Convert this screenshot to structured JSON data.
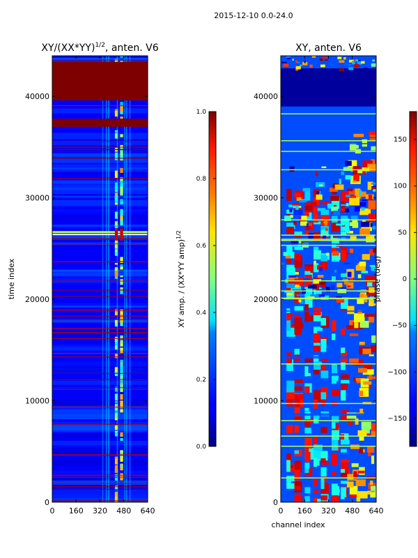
{
  "suptitle": "2015-12-10 0.0-24.0",
  "chart_data": [
    {
      "type": "heatmap",
      "title": "XY/(XX*YY)^{1/2}, anten. V6",
      "title_main": "XY/(XX*YY)",
      "title_sup": "1/2",
      "title_tail": ", anten. V6",
      "xlabel": "",
      "ylabel": "time index",
      "xlim": [
        0,
        640
      ],
      "ylim": [
        0,
        44000
      ],
      "xticks": [
        0,
        160,
        320,
        480,
        640
      ],
      "yticks": [
        0,
        10000,
        20000,
        30000,
        40000
      ],
      "colorbar": {
        "label": "XY amp. / (XX*YY amp)^{1/2}",
        "label_main": "XY amp. / (XX*YY amp)",
        "label_sup": "1/2",
        "range": [
          0.0,
          1.0
        ],
        "ticks": [
          "0.0",
          "0.2",
          "0.4",
          "0.6",
          "0.8",
          "1.0"
        ],
        "colormap": "jet"
      },
      "saturated_time_bands": [
        [
          37000,
          37800
        ],
        [
          39600,
          43400
        ]
      ],
      "bright_channel_bands": [
        [
          420,
          440
        ],
        [
          455,
          475
        ]
      ],
      "peak_time_band": [
        25800,
        27000
      ],
      "background_value": 0.12
    },
    {
      "type": "heatmap",
      "title": "XY, anten. V6",
      "xlabel": "channel index",
      "ylabel": "",
      "xlim": [
        0,
        640
      ],
      "ylim": [
        0,
        44000
      ],
      "xticks": [
        0,
        160,
        320,
        480,
        640
      ],
      "yticks": [
        0,
        10000,
        20000,
        30000,
        40000
      ],
      "colorbar": {
        "label": "phase (deg)",
        "range": [
          -180,
          180
        ],
        "ticks": [
          "150",
          "100",
          "50",
          "0",
          "−50",
          "−100",
          "−150"
        ],
        "colormap": "jet"
      },
      "low_phase_time_band": [
        39000,
        44000
      ],
      "background_value": -150
    }
  ],
  "colors": {
    "jet_low": "#00007f",
    "jet_mid": "#7fff7f",
    "jet_high": "#7f0000"
  }
}
